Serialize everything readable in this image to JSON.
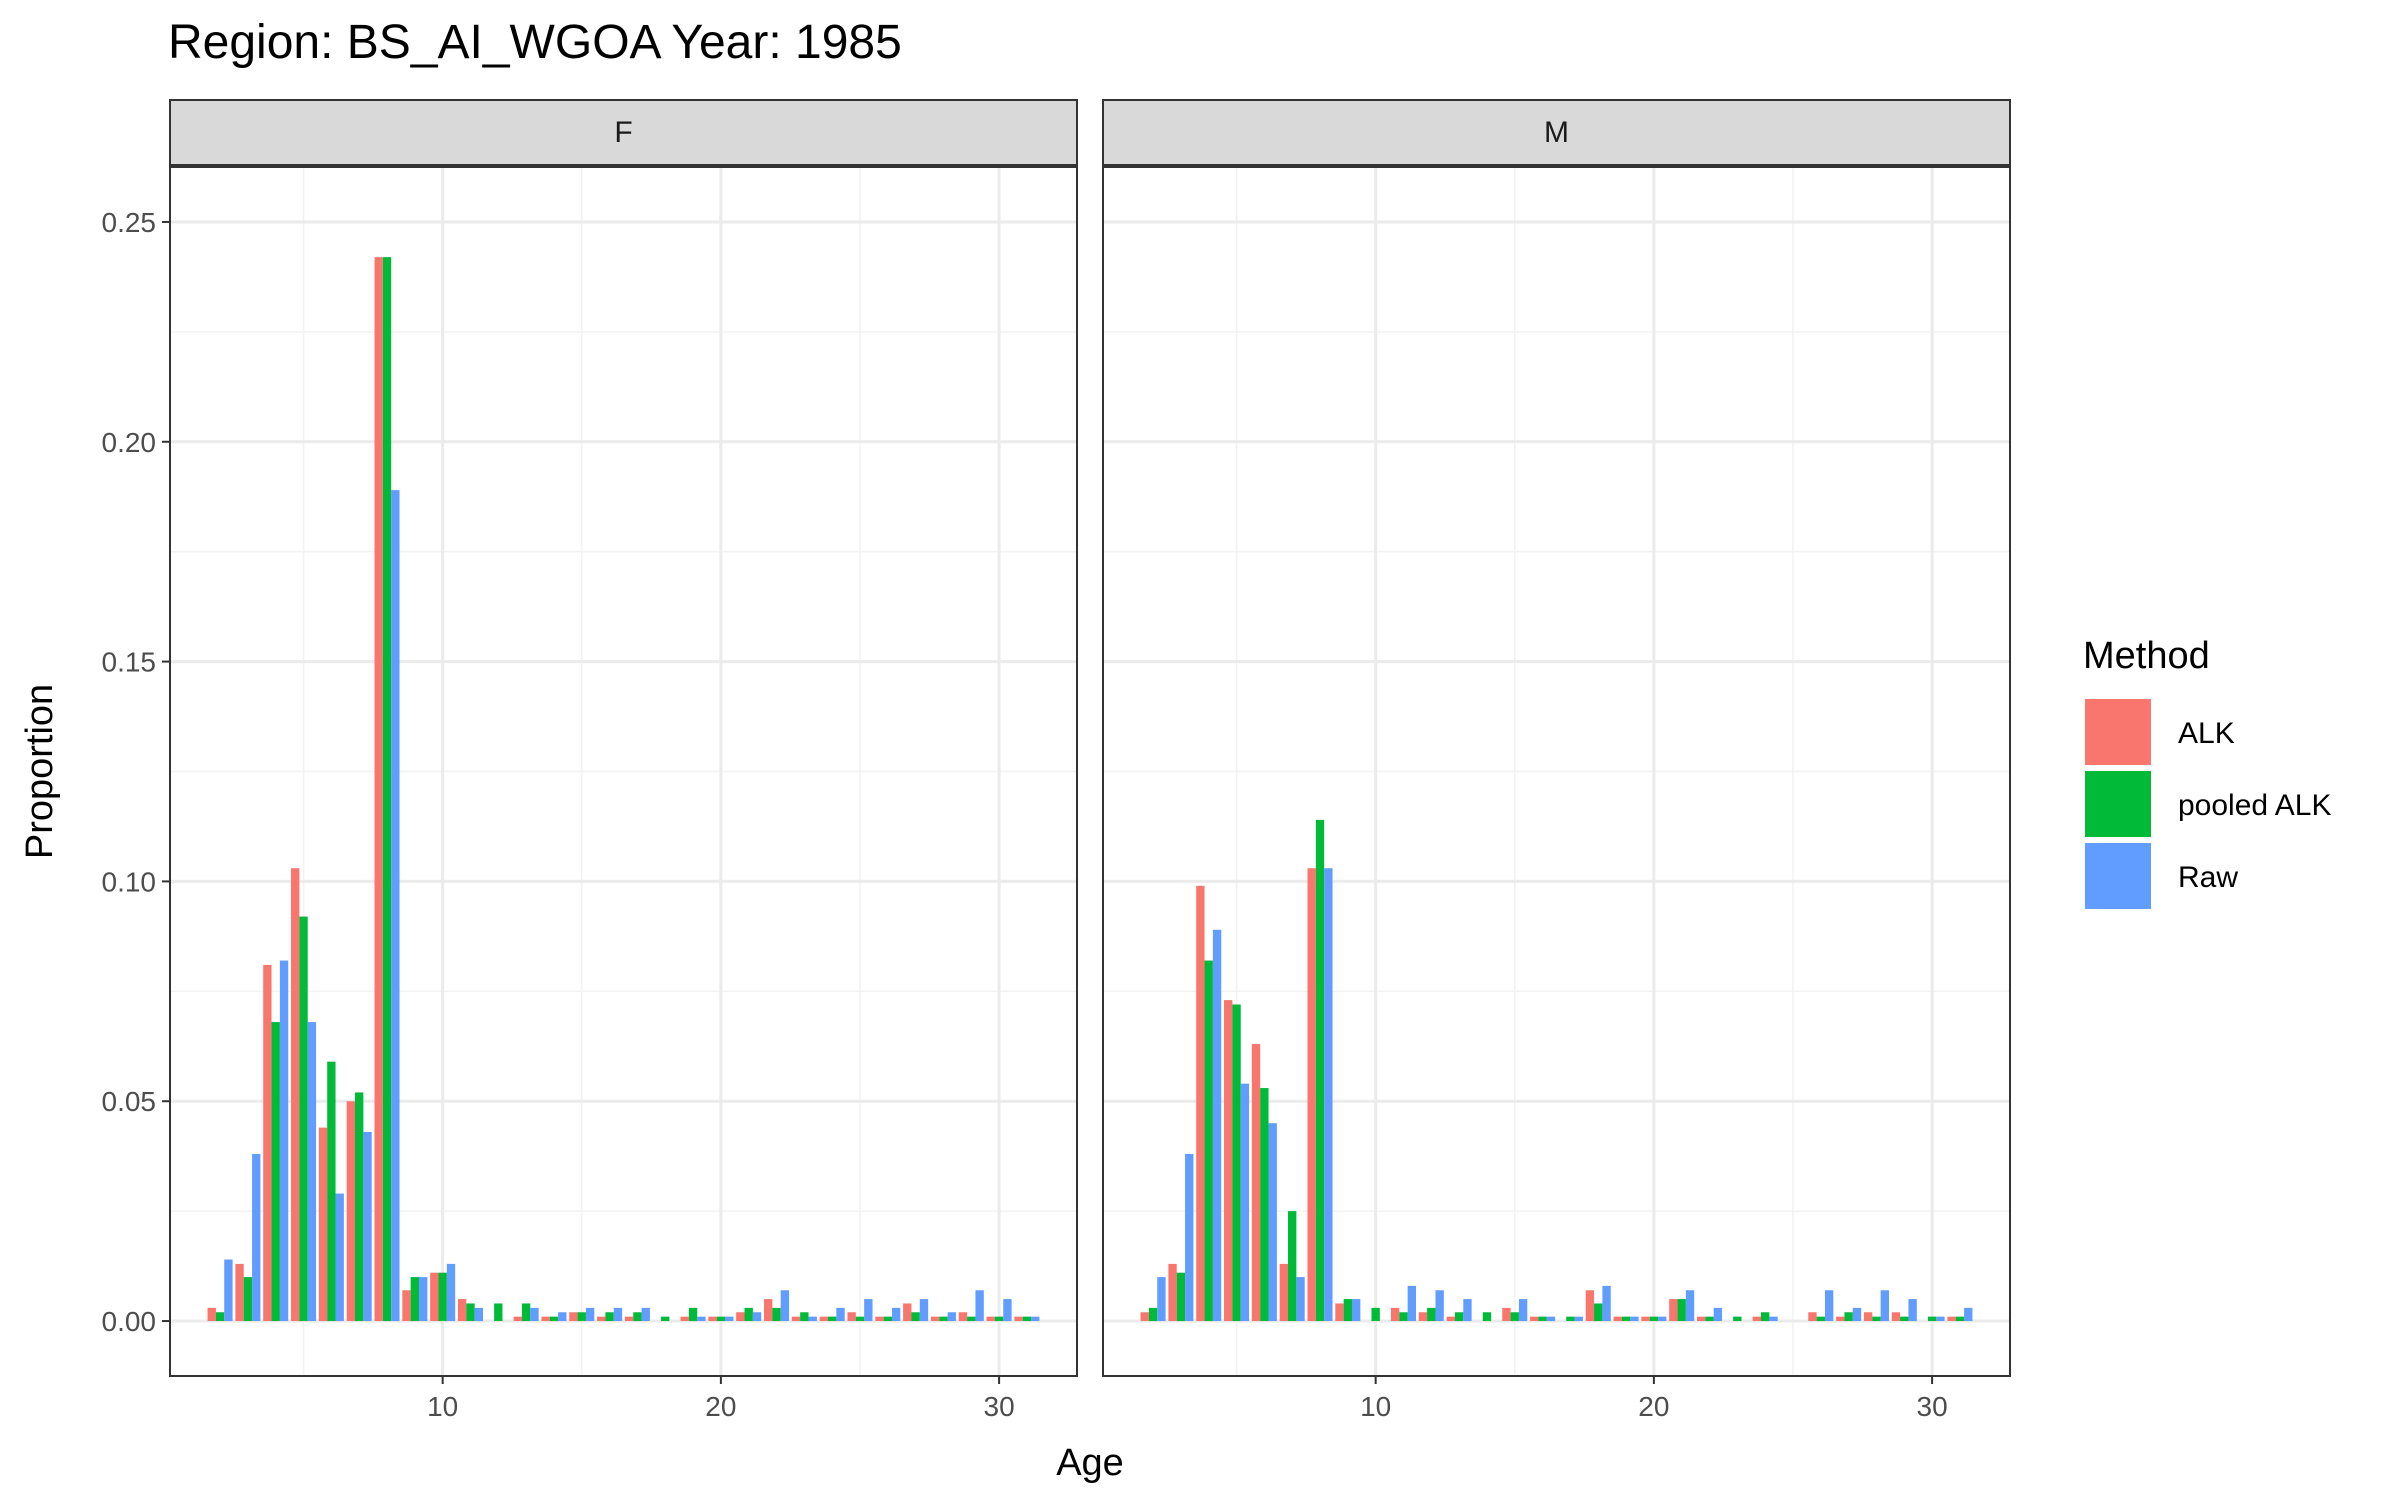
{
  "chart_data": {
    "type": "bar",
    "title": "Region: BS_AI_WGOA Year: 1985",
    "xlabel": "Age",
    "ylabel": "Proportion",
    "xlim": [
      0.2,
      32.8
    ],
    "ylim": [
      -0.0125,
      0.2625
    ],
    "x_ticks": [
      10,
      20,
      30
    ],
    "x_tick_labels": [
      "10",
      "20",
      "30"
    ],
    "y_ticks": [
      0,
      0.05,
      0.1,
      0.15,
      0.2,
      0.25
    ],
    "y_tick_labels": [
      "0.00",
      "0.05",
      "0.10",
      "0.15",
      "0.20",
      "0.25"
    ],
    "grid": true,
    "legend": {
      "title": "Method",
      "position": "right",
      "entries": [
        "ALK",
        "pooled ALK",
        "Raw"
      ]
    },
    "colors": {
      "ALK": "#F8766D",
      "pooled ALK": "#00BA38",
      "Raw": "#619CFF"
    },
    "x": [
      2,
      3,
      4,
      5,
      6,
      7,
      8,
      9,
      10,
      11,
      12,
      13,
      14,
      15,
      16,
      17,
      18,
      19,
      20,
      21,
      22,
      23,
      24,
      25,
      26,
      27,
      28,
      29,
      30,
      31
    ],
    "panels": [
      {
        "name": "F",
        "series": [
          {
            "name": "ALK",
            "values": [
              0.003,
              0.013,
              0.081,
              0.103,
              0.044,
              0.05,
              0.242,
              0.007,
              0.011,
              0.005,
              0.0,
              0.001,
              0.001,
              0.002,
              0.001,
              0.001,
              0.0,
              0.001,
              0.001,
              0.002,
              0.005,
              0.001,
              0.001,
              0.002,
              0.001,
              0.004,
              0.001,
              0.002,
              0.001,
              0.001
            ]
          },
          {
            "name": "pooled ALK",
            "values": [
              0.002,
              0.01,
              0.068,
              0.092,
              0.059,
              0.052,
              0.242,
              0.01,
              0.011,
              0.004,
              0.004,
              0.004,
              0.001,
              0.002,
              0.002,
              0.002,
              0.001,
              0.003,
              0.001,
              0.003,
              0.003,
              0.002,
              0.001,
              0.001,
              0.001,
              0.002,
              0.001,
              0.001,
              0.001,
              0.001
            ]
          },
          {
            "name": "Raw",
            "values": [
              0.014,
              0.038,
              0.082,
              0.068,
              0.029,
              0.043,
              0.189,
              0.01,
              0.013,
              0.003,
              0.0,
              0.003,
              0.002,
              0.003,
              0.003,
              0.003,
              0.0,
              0.001,
              0.001,
              0.002,
              0.007,
              0.001,
              0.003,
              0.005,
              0.003,
              0.005,
              0.002,
              0.007,
              0.005,
              0.001
            ]
          }
        ]
      },
      {
        "name": "M",
        "series": [
          {
            "name": "ALK",
            "values": [
              0.002,
              0.013,
              0.099,
              0.073,
              0.063,
              0.013,
              0.103,
              0.004,
              0.0,
              0.003,
              0.002,
              0.001,
              0.0,
              0.003,
              0.001,
              0.0,
              0.007,
              0.001,
              0.001,
              0.005,
              0.001,
              0.0,
              0.001,
              0.0,
              0.002,
              0.001,
              0.002,
              0.002,
              0.0,
              0.001
            ]
          },
          {
            "name": "pooled ALK",
            "values": [
              0.003,
              0.011,
              0.082,
              0.072,
              0.053,
              0.025,
              0.114,
              0.005,
              0.003,
              0.002,
              0.003,
              0.002,
              0.002,
              0.002,
              0.001,
              0.001,
              0.004,
              0.001,
              0.001,
              0.005,
              0.001,
              0.001,
              0.002,
              0.0,
              0.001,
              0.002,
              0.001,
              0.001,
              0.001,
              0.001
            ]
          },
          {
            "name": "Raw",
            "values": [
              0.01,
              0.038,
              0.089,
              0.054,
              0.045,
              0.01,
              0.103,
              0.005,
              0.0,
              0.008,
              0.007,
              0.005,
              0.0,
              0.005,
              0.001,
              0.001,
              0.008,
              0.001,
              0.001,
              0.007,
              0.003,
              0.0,
              0.001,
              0.0,
              0.007,
              0.003,
              0.007,
              0.005,
              0.001,
              0.003
            ]
          }
        ]
      }
    ]
  }
}
